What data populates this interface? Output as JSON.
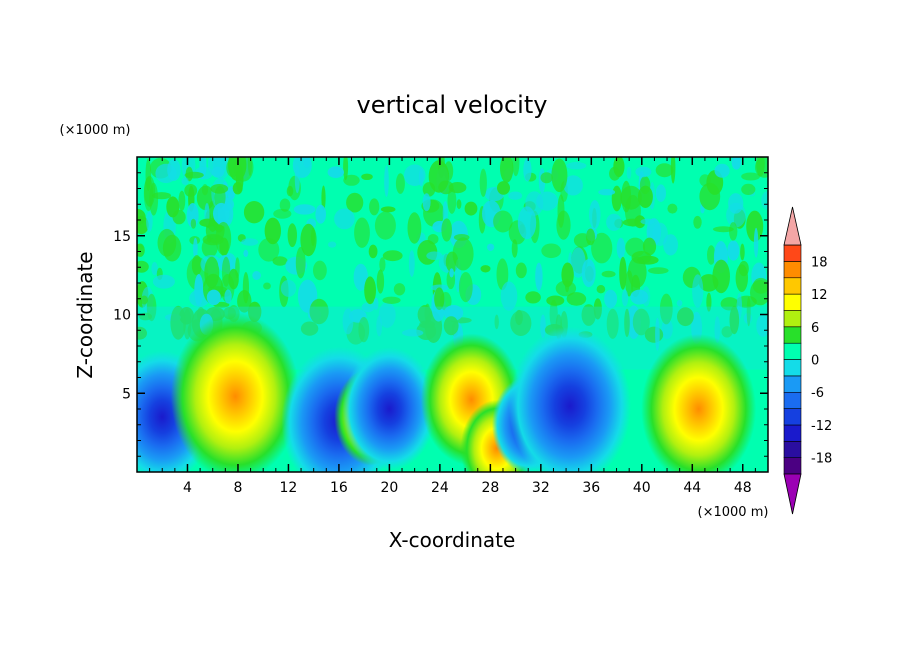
{
  "chart_data": {
    "type": "heatmap",
    "title": "vertical velocity",
    "xlabel": "X-coordinate",
    "ylabel": "Z-coordinate",
    "x_unit": "(×1000 m)",
    "y_unit": "(×1000 m)",
    "xlim": [
      0,
      50
    ],
    "ylim": [
      0,
      20
    ],
    "x_ticks": [
      4,
      8,
      12,
      16,
      20,
      24,
      28,
      32,
      36,
      40,
      44,
      48
    ],
    "y_ticks": [
      5,
      10,
      15
    ],
    "colorbar": {
      "tick_labels": [
        "18",
        "12",
        "6",
        "0",
        "-6",
        "-12",
        "-18"
      ],
      "tick_values": [
        18,
        12,
        6,
        0,
        -6,
        -12,
        -18
      ],
      "levels": [
        -21,
        -18,
        -15,
        -12,
        -9,
        -6,
        -3,
        0,
        3,
        6,
        9,
        12,
        15,
        18,
        21
      ],
      "colors": [
        "#4b0082",
        "#2a0ea0",
        "#1a1acc",
        "#1540e0",
        "#1a6cf0",
        "#1a9af5",
        "#14dce8",
        "#00ffb0",
        "#28e02a",
        "#b0f010",
        "#ffff00",
        "#ffc800",
        "#ff8c00",
        "#ff4818",
        "#ee1414"
      ],
      "extend_low_color": "#9b00b4",
      "extend_high_color": "#f4a6a6"
    },
    "background_value": 0,
    "features": [
      {
        "x": 2.0,
        "z": 3.5,
        "value": -10
      },
      {
        "x": 7.8,
        "z": 4.8,
        "value": 14
      },
      {
        "x": 16.0,
        "z": 3.2,
        "value": -12
      },
      {
        "x": 18.5,
        "z": 3.5,
        "value": 6
      },
      {
        "x": 20.0,
        "z": 4.0,
        "value": -9
      },
      {
        "x": 26.5,
        "z": 4.6,
        "value": 10
      },
      {
        "x": 28.5,
        "z": 1.5,
        "value": 6
      },
      {
        "x": 31.0,
        "z": 3.0,
        "value": -6
      },
      {
        "x": 34.3,
        "z": 4.2,
        "value": -13
      },
      {
        "x": 44.5,
        "z": 4.0,
        "value": 12
      }
    ]
  }
}
